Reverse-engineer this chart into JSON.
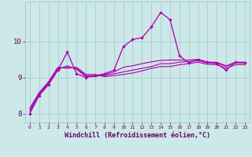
{
  "xlabel": "Windchill (Refroidissement éolien,°C)",
  "xlim": [
    -0.5,
    23.5
  ],
  "ylim": [
    7.75,
    11.1
  ],
  "yticks": [
    8,
    9,
    10
  ],
  "xticks": [
    0,
    1,
    2,
    3,
    4,
    5,
    6,
    7,
    8,
    9,
    10,
    11,
    12,
    13,
    14,
    15,
    16,
    17,
    18,
    19,
    20,
    21,
    22,
    23
  ],
  "bg_color": "#cce8e8",
  "grid_color": "#aacccc",
  "line_color": "#aa00aa",
  "line1": [
    8.0,
    8.5,
    8.8,
    9.2,
    9.7,
    9.1,
    9.0,
    9.05,
    9.1,
    9.2,
    9.85,
    10.05,
    10.1,
    10.4,
    10.8,
    10.6,
    9.6,
    9.4,
    9.5,
    9.42,
    9.38,
    9.2,
    9.42,
    9.4
  ],
  "line2": [
    8.05,
    8.52,
    8.82,
    9.22,
    9.32,
    9.22,
    9.02,
    9.02,
    9.08,
    9.15,
    9.28,
    9.32,
    9.38,
    9.43,
    9.47,
    9.48,
    9.48,
    9.48,
    9.5,
    9.42,
    9.42,
    9.32,
    9.42,
    9.42
  ],
  "line3": [
    8.1,
    8.55,
    8.85,
    9.25,
    9.28,
    9.25,
    9.05,
    9.05,
    9.05,
    9.1,
    9.15,
    9.2,
    9.25,
    9.3,
    9.38,
    9.38,
    9.42,
    9.44,
    9.46,
    9.4,
    9.4,
    9.3,
    9.4,
    9.4
  ],
  "line4": [
    8.15,
    8.58,
    8.88,
    9.28,
    9.25,
    9.28,
    9.08,
    9.08,
    9.02,
    9.05,
    9.08,
    9.12,
    9.18,
    9.25,
    9.3,
    9.3,
    9.35,
    9.38,
    9.42,
    9.36,
    9.35,
    9.25,
    9.35,
    9.35
  ]
}
